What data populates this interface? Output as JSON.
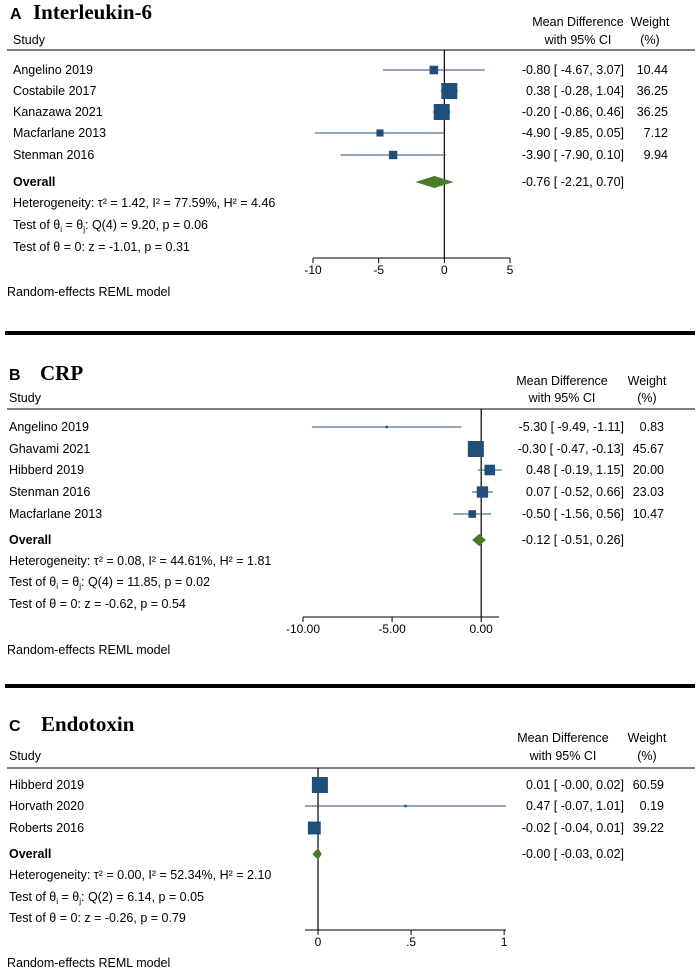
{
  "colors": {
    "marker": "#1f4e79",
    "diamond": "#4a7a2a",
    "line": "#1f4e79",
    "axis": "#000000",
    "divider": "#000000"
  },
  "header": {
    "study": "Study",
    "effect_line1": "Mean Difference",
    "effect_line2": "with 95% CI",
    "weight_line1": "Weight",
    "weight_line2": "(%)"
  },
  "model_note": "Random-effects REML model",
  "chart_data": [
    {
      "type": "forest",
      "panel_letter": "A",
      "title": "Interleukin-6",
      "studies": [
        {
          "name": "Angelino 2019",
          "est": -0.8,
          "lo": -4.67,
          "hi": 3.07,
          "ci_text": "-0.80 [ -4.67,  3.07]",
          "weight": 10.44,
          "weight_text": "10.44"
        },
        {
          "name": "Costabile 2017",
          "est": 0.38,
          "lo": -0.28,
          "hi": 1.04,
          "ci_text": "0.38 [ -0.28,  1.04]",
          "weight": 36.25,
          "weight_text": "36.25"
        },
        {
          "name": "Kanazawa 2021",
          "est": -0.2,
          "lo": -0.86,
          "hi": 0.46,
          "ci_text": "-0.20 [ -0.86,  0.46]",
          "weight": 36.25,
          "weight_text": "36.25"
        },
        {
          "name": "Macfarlane 2013",
          "est": -4.9,
          "lo": -9.85,
          "hi": 0.05,
          "ci_text": "-4.90 [ -9.85,  0.05]",
          "weight": 7.12,
          "weight_text": "7.12"
        },
        {
          "name": "Stenman 2016",
          "est": -3.9,
          "lo": -7.9,
          "hi": 0.1,
          "ci_text": "-3.90 [ -7.90,  0.10]",
          "weight": 9.94,
          "weight_text": "9.94"
        }
      ],
      "overall": {
        "label": "Overall",
        "est": -0.76,
        "lo": -2.21,
        "hi": 0.7,
        "ci_text": "-0.76 [ -2.21,  0.70]"
      },
      "heterogeneity": "Heterogeneity: τ² = 1.42, I² = 77.59%, H² = 4.46",
      "test_homog_prefix": "Test of θ",
      "test_homog_suffix": ": Q(4) = 9.20, p = 0.06",
      "test_zero": "Test of θ = 0: z = -1.01, p = 0.31",
      "xlim": [
        -10,
        5
      ],
      "ticks": [
        -10,
        -5,
        0,
        5
      ],
      "tick_labels": [
        "-10",
        "-5",
        "0",
        "5"
      ]
    },
    {
      "type": "forest",
      "panel_letter": "B",
      "title": "CRP",
      "studies": [
        {
          "name": "Angelino 2019",
          "est": -5.3,
          "lo": -9.49,
          "hi": -1.11,
          "ci_text": "-5.30 [ -9.49,  -1.11]",
          "weight": 0.83,
          "weight_text": "0.83"
        },
        {
          "name": "Ghavami 2021",
          "est": -0.3,
          "lo": -0.47,
          "hi": -0.13,
          "ci_text": "-0.30 [ -0.47,  -0.13]",
          "weight": 45.67,
          "weight_text": "45.67"
        },
        {
          "name": "Hibberd 2019",
          "est": 0.48,
          "lo": -0.19,
          "hi": 1.15,
          "ci_text": "0.48 [ -0.19,  1.15]",
          "weight": 20.0,
          "weight_text": "20.00"
        },
        {
          "name": "Stenman 2016",
          "est": 0.07,
          "lo": -0.52,
          "hi": 0.66,
          "ci_text": "0.07 [ -0.52,  0.66]",
          "weight": 23.03,
          "weight_text": "23.03"
        },
        {
          "name": "Macfarlane 2013",
          "est": -0.5,
          "lo": -1.56,
          "hi": 0.56,
          "ci_text": "-0.50 [ -1.56,  0.56]",
          "weight": 10.47,
          "weight_text": "10.47"
        }
      ],
      "overall": {
        "label": "Overall",
        "est": -0.12,
        "lo": -0.51,
        "hi": 0.26,
        "ci_text": "-0.12 [ -0.51,  0.26]"
      },
      "heterogeneity": "Heterogeneity: τ² = 0.08, I² = 44.61%, H² = 1.81",
      "test_homog_prefix": "Test of θ",
      "test_homog_suffix": ": Q(4) = 11.85, p = 0.02",
      "test_zero": "Test of θ = 0: z = -0.62, p = 0.54",
      "xlim": [
        -10,
        1
      ],
      "ticks": [
        -10,
        -5,
        0
      ],
      "tick_labels": [
        "-10.00",
        "-5.00",
        "0.00"
      ]
    },
    {
      "type": "forest",
      "panel_letter": "C",
      "title": "Endotoxin",
      "studies": [
        {
          "name": "Hibberd 2019",
          "est": 0.01,
          "lo": -0.0,
          "hi": 0.02,
          "ci_text": "0.01 [ -0.00,  0.02]",
          "weight": 60.59,
          "weight_text": "60.59"
        },
        {
          "name": "Horvath 2020",
          "est": 0.47,
          "lo": -0.07,
          "hi": 1.01,
          "ci_text": "0.47 [ -0.07,  1.01]",
          "weight": 0.19,
          "weight_text": "0.19"
        },
        {
          "name": "Roberts 2016",
          "est": -0.02,
          "lo": -0.04,
          "hi": 0.01,
          "ci_text": "-0.02 [ -0.04,  0.01]",
          "weight": 39.22,
          "weight_text": "39.22"
        }
      ],
      "overall": {
        "label": "Overall",
        "est": -0.0,
        "lo": -0.03,
        "hi": 0.02,
        "ci_text": "-0.00 [ -0.03,  0.02]"
      },
      "heterogeneity": "Heterogeneity: τ² = 0.00, I² = 52.34%, H² = 2.10",
      "test_homog_prefix": "Test of θ",
      "test_homog_suffix": ": Q(2) = 6.14, p = 0.05",
      "test_zero": "Test of θ = 0: z = -0.26, p = 0.79",
      "xlim": [
        -0.07,
        1.01
      ],
      "ticks": [
        0,
        0.5,
        1
      ],
      "tick_labels": [
        "0",
        ".5",
        "1"
      ]
    }
  ]
}
